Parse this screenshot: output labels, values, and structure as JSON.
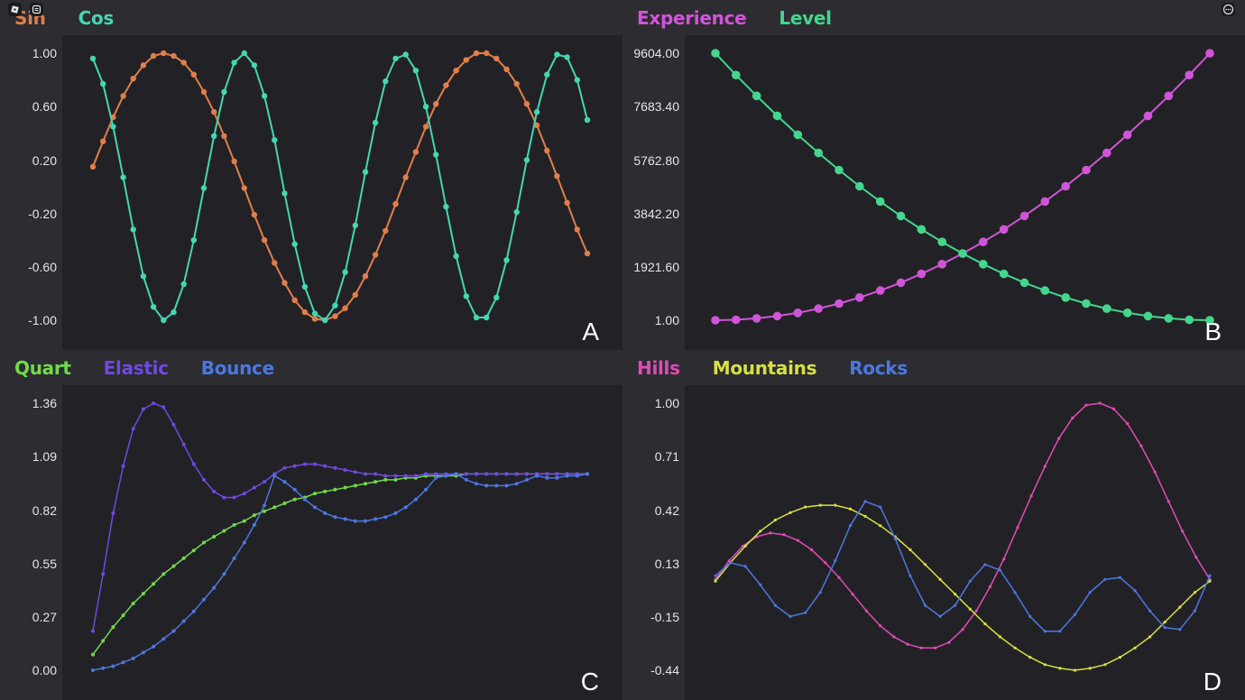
{
  "system_icons": {
    "left": [
      "roblox-menu-icon",
      "chat-icon"
    ],
    "right": [
      "more-options-icon"
    ]
  },
  "panels": [
    {
      "id": "A",
      "letter": "A",
      "legend": [
        {
          "label": "Sin",
          "color": "#e07f4b"
        },
        {
          "label": "Cos",
          "color": "#45d6b2"
        }
      ],
      "yticks": [
        "1.00",
        "0.60",
        "0.20",
        "-0.20",
        "-0.60",
        "-1.00"
      ]
    },
    {
      "id": "B",
      "letter": "B",
      "legend": [
        {
          "label": "Experience",
          "color": "#d155d8"
        },
        {
          "label": "Level",
          "color": "#44d68e"
        }
      ],
      "yticks": [
        "9604.00",
        "7683.40",
        "5762.80",
        "3842.20",
        "1921.60",
        "1.00"
      ]
    },
    {
      "id": "C",
      "letter": "C",
      "legend": [
        {
          "label": "Quart",
          "color": "#72d94a"
        },
        {
          "label": "Elastic",
          "color": "#7049e0"
        },
        {
          "label": "Bounce",
          "color": "#4d77e0"
        }
      ],
      "yticks": [
        "1.36",
        "1.09",
        "0.82",
        "0.55",
        "0.27",
        "0.00"
      ]
    },
    {
      "id": "D",
      "letter": "D",
      "legend": [
        {
          "label": "Hills",
          "color": "#e04cb4"
        },
        {
          "label": "Mountains",
          "color": "#d8e040"
        },
        {
          "label": "Rocks",
          "color": "#4d77e0"
        }
      ],
      "yticks": [
        "1.00",
        "0.71",
        "0.42",
        "0.13",
        "-0.15",
        "-0.44"
      ]
    }
  ],
  "chart_data": [
    {
      "type": "line",
      "title": "A",
      "xlabel": "",
      "ylabel": "",
      "ylim": [
        -1.0,
        1.0
      ],
      "grid": false,
      "legend_position": "top-left",
      "series": [
        {
          "name": "Sin",
          "color": "#e07f4b",
          "marker_size": 3.2,
          "values": [
            0.15,
            0.34,
            0.52,
            0.68,
            0.81,
            0.91,
            0.98,
            1.0,
            0.98,
            0.93,
            0.84,
            0.71,
            0.56,
            0.38,
            0.19,
            -0.01,
            -0.21,
            -0.4,
            -0.57,
            -0.72,
            -0.85,
            -0.94,
            -0.99,
            -1.0,
            -0.97,
            -0.91,
            -0.81,
            -0.67,
            -0.51,
            -0.33,
            -0.13,
            0.07,
            0.26,
            0.45,
            0.62,
            0.76,
            0.87,
            0.95,
            1.0,
            1.0,
            0.96,
            0.88,
            0.77,
            0.62,
            0.46,
            0.27,
            0.08,
            -0.12,
            -0.32,
            -0.5
          ]
        },
        {
          "name": "Cos",
          "color": "#45d6b2",
          "marker_size": 3.2,
          "values": [
            0.96,
            0.77,
            0.45,
            0.07,
            -0.32,
            -0.67,
            -0.9,
            -1.0,
            -0.94,
            -0.73,
            -0.4,
            -0.01,
            0.38,
            0.71,
            0.93,
            1.0,
            0.91,
            0.68,
            0.35,
            -0.05,
            -0.43,
            -0.75,
            -0.95,
            -1.0,
            -0.89,
            -0.64,
            -0.29,
            0.11,
            0.48,
            0.79,
            0.96,
            0.99,
            0.87,
            0.6,
            0.24,
            -0.15,
            -0.52,
            -0.82,
            -0.98,
            -0.98,
            -0.83,
            -0.55,
            -0.19,
            0.2,
            0.56,
            0.84,
            0.99,
            0.97,
            0.8,
            0.5
          ]
        }
      ]
    },
    {
      "type": "line",
      "title": "B",
      "xlabel": "",
      "ylabel": "",
      "ylim": [
        1.0,
        9604.0
      ],
      "grid": false,
      "legend_position": "top-left",
      "series": [
        {
          "name": "Experience",
          "color": "#d155d8",
          "marker_size": 4.8,
          "values": [
            1,
            18,
            68,
            151,
            268,
            418,
            601,
            818,
            1068,
            1351,
            1668,
            2018,
            2402,
            2818,
            3268,
            3752,
            4269,
            4820,
            5403,
            6020,
            6670,
            7353,
            8070,
            8820,
            9604
          ]
        },
        {
          "name": "Level",
          "color": "#44d68e",
          "marker_size": 4.8,
          "values": [
            9604,
            8820,
            8070,
            7353,
            6670,
            6020,
            5403,
            4820,
            4269,
            3752,
            3268,
            2818,
            2402,
            2018,
            1668,
            1351,
            1068,
            818,
            601,
            418,
            268,
            151,
            68,
            18,
            1
          ]
        }
      ]
    },
    {
      "type": "line",
      "title": "C",
      "xlabel": "",
      "ylabel": "",
      "ylim": [
        0.0,
        1.36
      ],
      "grid": false,
      "legend_position": "top-left",
      "series": [
        {
          "name": "Quart",
          "color": "#72d94a",
          "marker_size": 2,
          "values": [
            0.08,
            0.15,
            0.22,
            0.28,
            0.34,
            0.39,
            0.44,
            0.49,
            0.53,
            0.57,
            0.61,
            0.65,
            0.68,
            0.71,
            0.74,
            0.76,
            0.79,
            0.81,
            0.83,
            0.85,
            0.87,
            0.88,
            0.9,
            0.91,
            0.92,
            0.93,
            0.94,
            0.95,
            0.96,
            0.97,
            0.97,
            0.98,
            0.98,
            0.99,
            0.99,
            0.99,
            0.99,
            1.0,
            1.0,
            1.0,
            1.0,
            1.0,
            1.0,
            1.0,
            1.0,
            1.0,
            1.0,
            1.0,
            1.0,
            1.0
          ]
        },
        {
          "name": "Elastic",
          "color": "#7049e0",
          "marker_size": 2,
          "values": [
            0.2,
            0.49,
            0.8,
            1.04,
            1.23,
            1.33,
            1.36,
            1.34,
            1.25,
            1.15,
            1.05,
            0.97,
            0.91,
            0.88,
            0.88,
            0.9,
            0.93,
            0.96,
            1.0,
            1.03,
            1.04,
            1.05,
            1.05,
            1.04,
            1.03,
            1.02,
            1.01,
            1.0,
            1.0,
            0.99,
            0.99,
            0.99,
            0.99,
            1.0,
            1.0,
            1.0,
            1.0,
            1.0,
            1.0,
            1.0,
            1.0,
            1.0,
            1.0,
            1.0,
            1.0,
            1.0,
            1.0,
            1.0,
            1.0,
            1.0
          ]
        },
        {
          "name": "Bounce",
          "color": "#4d77e0",
          "marker_size": 2,
          "values": [
            0.0,
            0.01,
            0.02,
            0.04,
            0.06,
            0.09,
            0.12,
            0.16,
            0.2,
            0.25,
            0.3,
            0.36,
            0.42,
            0.49,
            0.57,
            0.65,
            0.74,
            0.84,
            0.99,
            0.96,
            0.92,
            0.87,
            0.83,
            0.8,
            0.78,
            0.77,
            0.76,
            0.76,
            0.77,
            0.78,
            0.8,
            0.83,
            0.87,
            0.92,
            0.98,
            0.99,
            1.0,
            0.97,
            0.95,
            0.94,
            0.94,
            0.94,
            0.95,
            0.97,
            0.99,
            0.98,
            0.98,
            0.99,
            0.99,
            1.0
          ]
        }
      ]
    },
    {
      "type": "line",
      "title": "D",
      "xlabel": "",
      "ylabel": "",
      "ylim": [
        -0.44,
        1.0
      ],
      "grid": false,
      "legend_position": "top-left",
      "series": [
        {
          "name": "Hills",
          "color": "#e04cb4",
          "marker_size": 1.6,
          "values": [
            0.05,
            0.15,
            0.23,
            0.28,
            0.3,
            0.29,
            0.26,
            0.21,
            0.14,
            0.06,
            -0.03,
            -0.12,
            -0.2,
            -0.26,
            -0.3,
            -0.32,
            -0.32,
            -0.29,
            -0.22,
            -0.12,
            0.01,
            0.16,
            0.33,
            0.5,
            0.66,
            0.81,
            0.92,
            0.99,
            1.0,
            0.97,
            0.89,
            0.77,
            0.63,
            0.47,
            0.31,
            0.17,
            0.05
          ]
        },
        {
          "name": "Mountains",
          "color": "#d8e040",
          "marker_size": 1.6,
          "values": [
            0.04,
            0.14,
            0.23,
            0.31,
            0.37,
            0.41,
            0.44,
            0.45,
            0.45,
            0.43,
            0.39,
            0.34,
            0.28,
            0.21,
            0.13,
            0.05,
            -0.03,
            -0.11,
            -0.19,
            -0.26,
            -0.32,
            -0.37,
            -0.41,
            -0.43,
            -0.44,
            -0.43,
            -0.41,
            -0.37,
            -0.32,
            -0.26,
            -0.18,
            -0.1,
            -0.02,
            0.04
          ]
        },
        {
          "name": "Rocks",
          "color": "#4d77e0",
          "marker_size": 1.6,
          "values": [
            0.07,
            0.14,
            0.12,
            0.02,
            -0.09,
            -0.15,
            -0.13,
            -0.02,
            0.15,
            0.34,
            0.47,
            0.44,
            0.27,
            0.07,
            -0.09,
            -0.15,
            -0.09,
            0.04,
            0.13,
            0.1,
            -0.02,
            -0.15,
            -0.23,
            -0.23,
            -0.14,
            -0.02,
            0.05,
            0.06,
            -0.01,
            -0.12,
            -0.21,
            -0.22,
            -0.12,
            0.07
          ]
        }
      ]
    }
  ]
}
